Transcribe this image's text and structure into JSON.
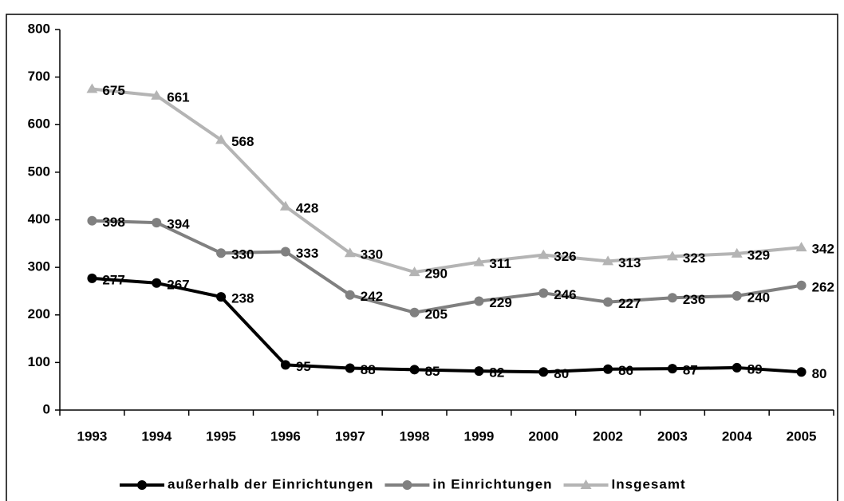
{
  "chart_data": {
    "type": "line",
    "categories": [
      "1993",
      "1994",
      "1995",
      "1996",
      "1997",
      "1998",
      "1999",
      "2000",
      "2002",
      "2003",
      "2004",
      "2005"
    ],
    "series": [
      {
        "name": "außerhalb der Einrichtungen",
        "color": "#000000",
        "marker": "circle",
        "values": [
          277,
          267,
          238,
          95,
          88,
          85,
          82,
          80,
          86,
          87,
          89,
          80
        ]
      },
      {
        "name": "in Einrichtungen",
        "color": "#808080",
        "marker": "circle",
        "values": [
          398,
          394,
          330,
          333,
          242,
          205,
          229,
          246,
          227,
          236,
          240,
          262
        ]
      },
      {
        "name": "Insgesamt",
        "color": "#b4b4b4",
        "marker": "triangle",
        "values": [
          675,
          661,
          568,
          428,
          330,
          290,
          311,
          326,
          313,
          323,
          329,
          342
        ]
      }
    ],
    "ylim": [
      0,
      800
    ],
    "yticks": [
      0,
      100,
      200,
      300,
      400,
      500,
      600,
      700,
      800
    ],
    "grid": false,
    "legend": "bottom"
  }
}
